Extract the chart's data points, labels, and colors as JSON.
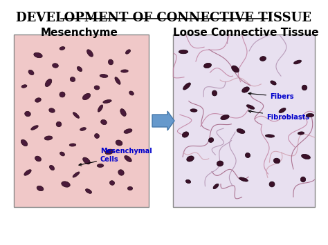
{
  "title": "DEVELOPMENT OF CONNECTIVE TISSUE",
  "title_fontsize": 13,
  "title_underline": true,
  "title_color": "#000000",
  "left_label": "Mesenchyme",
  "right_label": "Loose Connective Tissue",
  "label_fontsize": 11,
  "label_fontweight": "bold",
  "left_annotation": "Mesenchymal\nCells",
  "right_annotation1": "Fibers",
  "right_annotation2": "Fibroblasts",
  "annotation_color": "#0000cc",
  "annotation_fontsize": 7,
  "arrow_color": "#6699cc",
  "background_color": "#ffffff",
  "left_image_bg": "#f0c8c8",
  "right_image_bg": "#e8e0f0",
  "fig_width": 4.74,
  "fig_height": 3.55,
  "dpi": 100
}
